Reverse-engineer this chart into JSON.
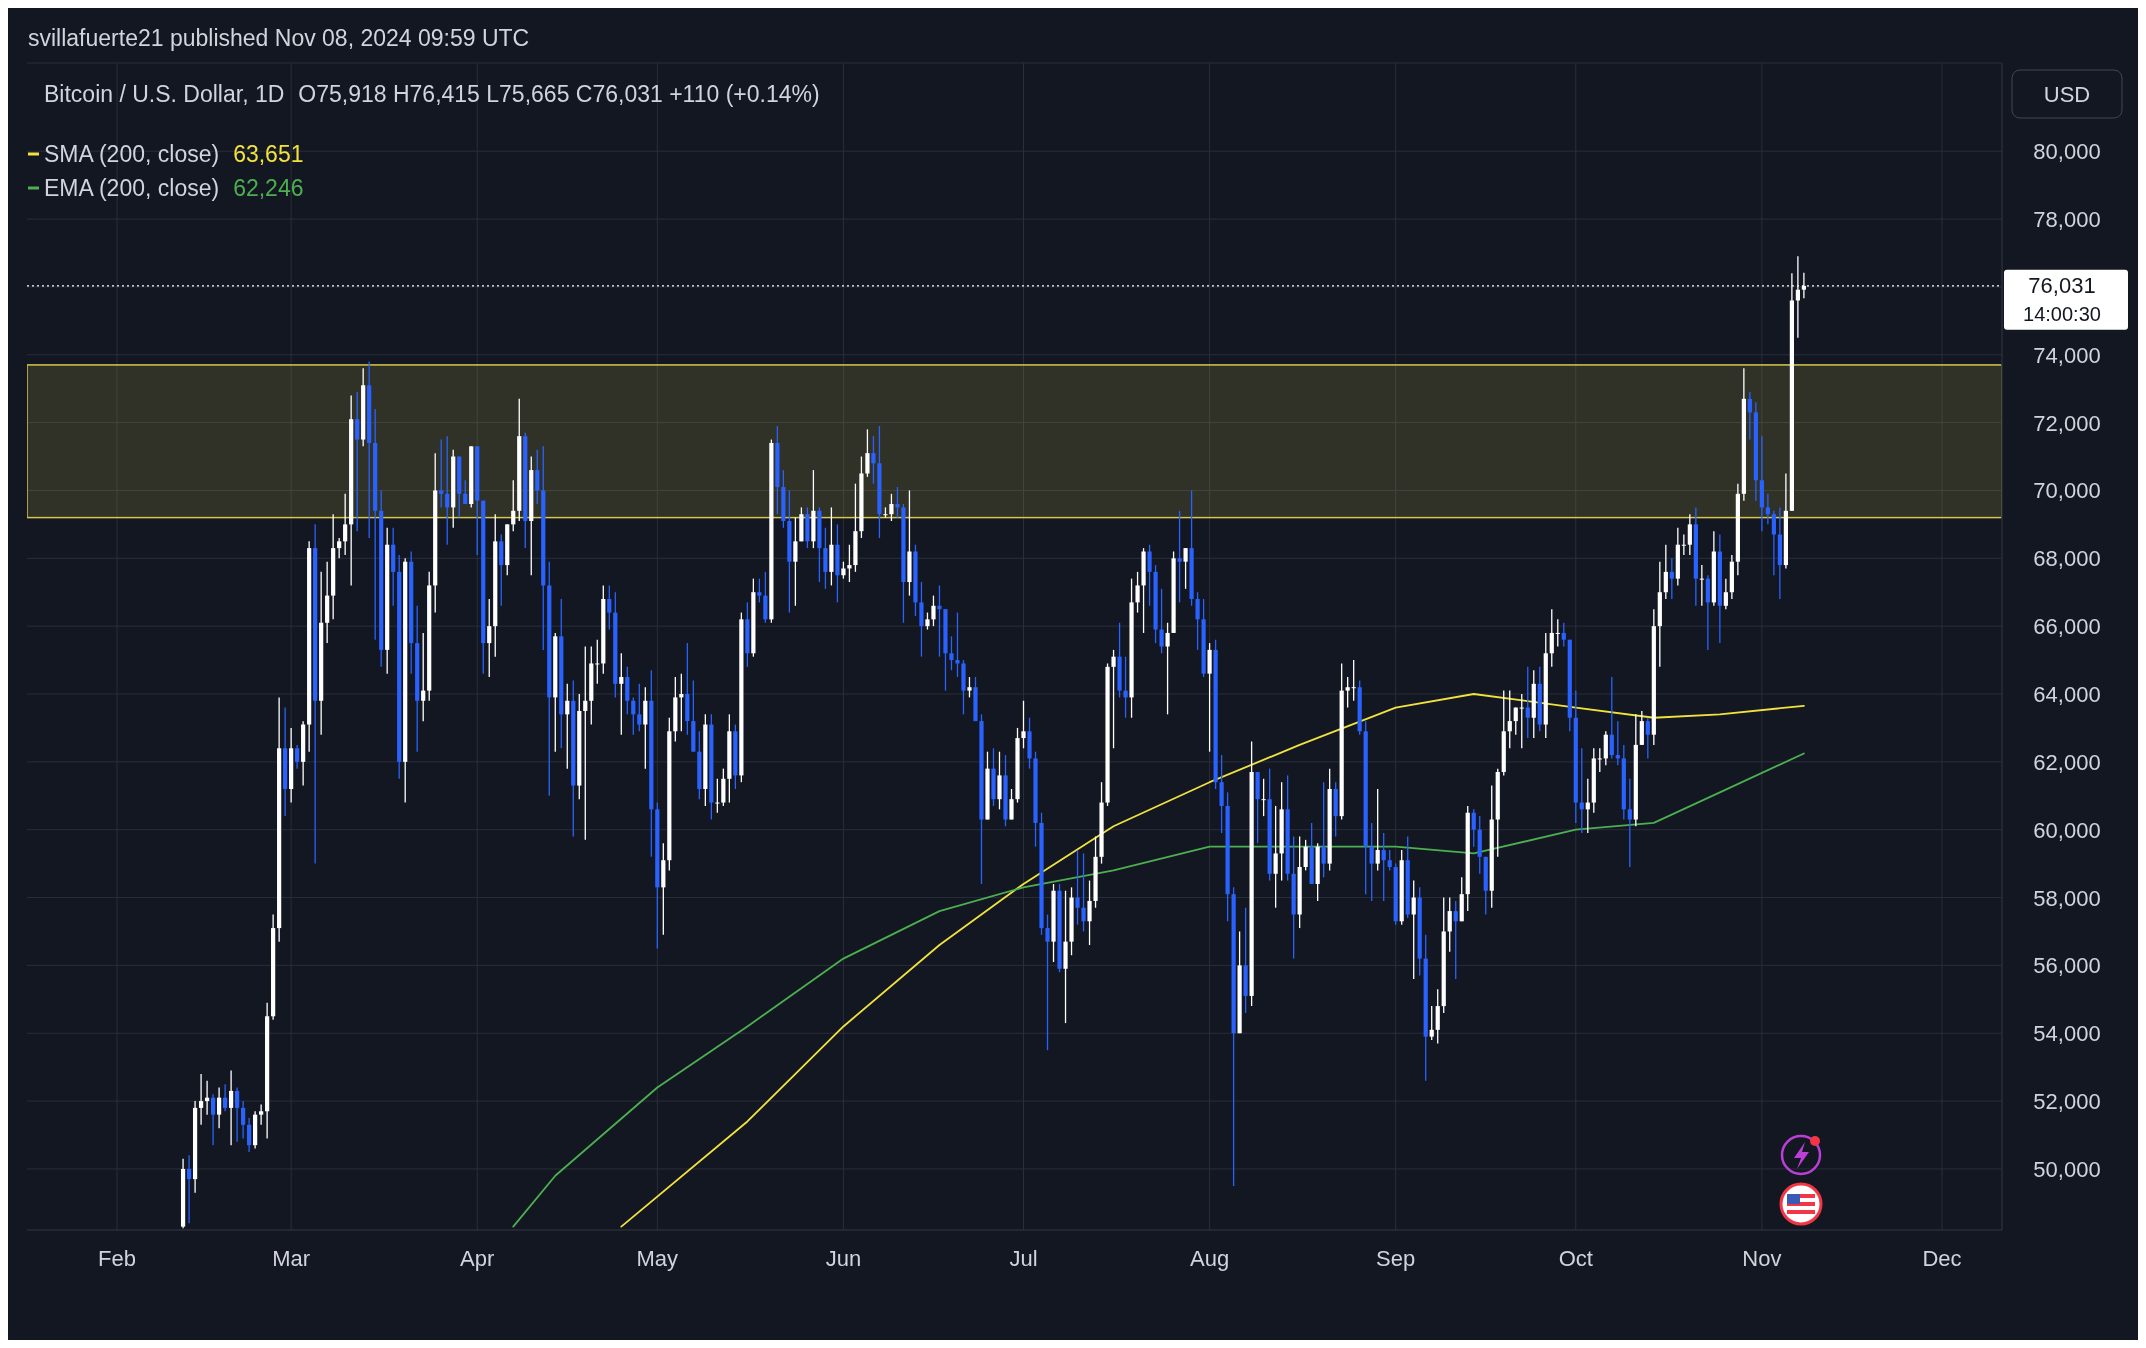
{
  "chart_data": {
    "type": "candlestick",
    "title": "Bitcoin / U.S. Dollar, 1D",
    "subtitle": "O75,918 H76,415 L75,665 C76,031 +110 (+0.14%)",
    "ylabel": "USD",
    "annotations": [
      "svillafuerte21 published Nov 08, 2024 09:59 UTC",
      "63,651",
      "62,246",
      "14:00:30"
    ],
    "xlim": [
      "2024-01-17",
      "2024-12-11"
    ],
    "xticks": [
      {
        "value": "2024-02-01",
        "label": "Feb"
      },
      {
        "value": "2024-03-01",
        "label": "Mar"
      },
      {
        "value": "2024-04-01",
        "label": "Apr"
      },
      {
        "value": "2024-05-01",
        "label": "May"
      },
      {
        "value": "2024-06-01",
        "label": "Jun"
      },
      {
        "value": "2024-07-01",
        "label": "Jul"
      },
      {
        "value": "2024-08-01",
        "label": "Aug"
      },
      {
        "value": "2024-09-01",
        "label": "Sep"
      },
      {
        "value": "2024-10-01",
        "label": "Oct"
      },
      {
        "value": "2024-11-01",
        "label": "Nov"
      },
      {
        "value": "2024-12-01",
        "label": "Dec"
      }
    ],
    "ylim": [
      48200,
      82600
    ],
    "yticks": [
      {
        "value": 50000,
        "label": "50,000"
      },
      {
        "value": 52000,
        "label": "52,000"
      },
      {
        "value": 54000,
        "label": "54,000"
      },
      {
        "value": 56000,
        "label": "56,000"
      },
      {
        "value": 58000,
        "label": "58,000"
      },
      {
        "value": 60000,
        "label": "60,000"
      },
      {
        "value": 62000,
        "label": "62,000"
      },
      {
        "value": 64000,
        "label": "64,000"
      },
      {
        "value": 66000,
        "label": "66,000"
      },
      {
        "value": 68000,
        "label": "68,000"
      },
      {
        "value": 70000,
        "label": "70,000"
      },
      {
        "value": 72000,
        "label": "72,000"
      },
      {
        "value": 74000,
        "label": "74,000"
      },
      {
        "value": 76000,
        "label": null
      },
      {
        "value": 78000,
        "label": "78,000"
      },
      {
        "value": 80000,
        "label": "80,000"
      }
    ],
    "grid": true,
    "legend": "top left",
    "bands": [
      {
        "axis": "y",
        "from": 69200,
        "to": 73700,
        "color": "#d8c84a"
      }
    ],
    "ref_lines": [
      {
        "axis": "y",
        "value": 76031,
        "label": "76,031",
        "color": "#ffffff",
        "line_style": "dotted"
      }
    ],
    "series": [
      {
        "name": "SMA (200, close)",
        "type": "line",
        "color": "#f2e33c",
        "x": [
          "2024-04-25",
          "2024-05-16",
          "2024-06-01",
          "2024-06-17",
          "2024-07-01",
          "2024-07-16",
          "2024-08-01",
          "2024-08-16",
          "2024-09-01",
          "2024-09-14",
          "2024-10-01",
          "2024-10-14",
          "2024-10-25",
          "2024-11-08"
        ],
        "values": [
          48300,
          51400,
          54200,
          56600,
          58400,
          60100,
          61400,
          62500,
          63600,
          64000,
          63600,
          63300,
          63400,
          63651
        ]
      },
      {
        "name": "EMA (200, close)",
        "type": "line",
        "color": "#4caf50",
        "x": [
          "2024-04-07",
          "2024-04-14",
          "2024-05-01",
          "2024-05-16",
          "2024-06-01",
          "2024-06-17",
          "2024-07-01",
          "2024-07-16",
          "2024-08-01",
          "2024-08-16",
          "2024-09-01",
          "2024-09-14",
          "2024-10-01",
          "2024-10-14",
          "2024-10-25",
          "2024-11-08"
        ],
        "values": [
          48300,
          49800,
          52400,
          54200,
          56200,
          57600,
          58300,
          58800,
          59500,
          59500,
          59500,
          59300,
          60000,
          60200,
          61100,
          62246
        ]
      }
    ],
    "x": [
      "2024-02-12",
      "2024-02-13",
      "2024-02-14",
      "2024-02-15",
      "2024-02-16",
      "2024-02-17",
      "2024-02-18",
      "2024-02-19",
      "2024-02-20",
      "2024-02-21",
      "2024-02-22",
      "2024-02-23",
      "2024-02-24",
      "2024-02-25",
      "2024-02-26",
      "2024-02-27",
      "2024-02-28",
      "2024-02-29",
      "2024-03-01",
      "2024-03-02",
      "2024-03-03",
      "2024-03-04",
      "2024-03-05",
      "2024-03-06",
      "2024-03-07",
      "2024-03-08",
      "2024-03-09",
      "2024-03-10",
      "2024-03-11",
      "2024-03-12",
      "2024-03-13",
      "2024-03-14",
      "2024-03-15",
      "2024-03-16",
      "2024-03-17",
      "2024-03-18",
      "2024-03-19",
      "2024-03-20",
      "2024-03-21",
      "2024-03-22",
      "2024-03-23",
      "2024-03-24",
      "2024-03-25",
      "2024-03-26",
      "2024-03-27",
      "2024-03-28",
      "2024-03-29",
      "2024-03-30",
      "2024-03-31",
      "2024-04-01",
      "2024-04-02",
      "2024-04-03",
      "2024-04-04",
      "2024-04-05",
      "2024-04-06",
      "2024-04-07",
      "2024-04-08",
      "2024-04-09",
      "2024-04-10",
      "2024-04-11",
      "2024-04-12",
      "2024-04-13",
      "2024-04-14",
      "2024-04-15",
      "2024-04-16",
      "2024-04-17",
      "2024-04-18",
      "2024-04-19",
      "2024-04-20",
      "2024-04-21",
      "2024-04-22",
      "2024-04-23",
      "2024-04-24",
      "2024-04-25",
      "2024-04-26",
      "2024-04-27",
      "2024-04-28",
      "2024-04-29",
      "2024-04-30",
      "2024-05-01",
      "2024-05-02",
      "2024-05-03",
      "2024-05-04",
      "2024-05-05",
      "2024-05-06",
      "2024-05-07",
      "2024-05-08",
      "2024-05-09",
      "2024-05-10",
      "2024-05-11",
      "2024-05-12",
      "2024-05-13",
      "2024-05-14",
      "2024-05-15",
      "2024-05-16",
      "2024-05-17",
      "2024-05-18",
      "2024-05-19",
      "2024-05-20",
      "2024-05-21",
      "2024-05-22",
      "2024-05-23",
      "2024-05-24",
      "2024-05-25",
      "2024-05-26",
      "2024-05-27",
      "2024-05-28",
      "2024-05-29",
      "2024-05-30",
      "2024-05-31",
      "2024-06-01",
      "2024-06-02",
      "2024-06-03",
      "2024-06-04",
      "2024-06-05",
      "2024-06-06",
      "2024-06-07",
      "2024-06-08",
      "2024-06-09",
      "2024-06-10",
      "2024-06-11",
      "2024-06-12",
      "2024-06-13",
      "2024-06-14",
      "2024-06-15",
      "2024-06-16",
      "2024-06-17",
      "2024-06-18",
      "2024-06-19",
      "2024-06-20",
      "2024-06-21",
      "2024-06-22",
      "2024-06-23",
      "2024-06-24",
      "2024-06-25",
      "2024-06-26",
      "2024-06-27",
      "2024-06-28",
      "2024-06-29",
      "2024-06-30",
      "2024-07-01",
      "2024-07-02",
      "2024-07-03",
      "2024-07-04",
      "2024-07-05",
      "2024-07-06",
      "2024-07-07",
      "2024-07-08",
      "2024-07-09",
      "2024-07-10",
      "2024-07-11",
      "2024-07-12",
      "2024-07-13",
      "2024-07-14",
      "2024-07-15",
      "2024-07-16",
      "2024-07-17",
      "2024-07-18",
      "2024-07-19",
      "2024-07-20",
      "2024-07-21",
      "2024-07-22",
      "2024-07-23",
      "2024-07-24",
      "2024-07-25",
      "2024-07-26",
      "2024-07-27",
      "2024-07-28",
      "2024-07-29",
      "2024-07-30",
      "2024-07-31",
      "2024-08-01",
      "2024-08-02",
      "2024-08-03",
      "2024-08-04",
      "2024-08-05",
      "2024-08-06",
      "2024-08-07",
      "2024-08-08",
      "2024-08-09",
      "2024-08-10",
      "2024-08-11",
      "2024-08-12",
      "2024-08-13",
      "2024-08-14",
      "2024-08-15",
      "2024-08-16",
      "2024-08-17",
      "2024-08-18",
      "2024-08-19",
      "2024-08-20",
      "2024-08-21",
      "2024-08-22",
      "2024-08-23",
      "2024-08-24",
      "2024-08-25",
      "2024-08-26",
      "2024-08-27",
      "2024-08-28",
      "2024-08-29",
      "2024-08-30",
      "2024-08-31",
      "2024-09-01",
      "2024-09-02",
      "2024-09-03",
      "2024-09-04",
      "2024-09-05",
      "2024-09-06",
      "2024-09-07",
      "2024-09-08",
      "2024-09-09",
      "2024-09-10",
      "2024-09-11",
      "2024-09-12",
      "2024-09-13",
      "2024-09-14",
      "2024-09-15",
      "2024-09-16",
      "2024-09-17",
      "2024-09-18",
      "2024-09-19",
      "2024-09-20",
      "2024-09-21",
      "2024-09-22",
      "2024-09-23",
      "2024-09-24",
      "2024-09-25",
      "2024-09-26",
      "2024-09-27",
      "2024-09-28",
      "2024-09-29",
      "2024-09-30",
      "2024-10-01",
      "2024-10-02",
      "2024-10-03",
      "2024-10-04",
      "2024-10-05",
      "2024-10-06",
      "2024-10-07",
      "2024-10-08",
      "2024-10-09",
      "2024-10-10",
      "2024-10-11",
      "2024-10-12",
      "2024-10-13",
      "2024-10-14",
      "2024-10-15",
      "2024-10-16",
      "2024-10-17",
      "2024-10-18",
      "2024-10-19",
      "2024-10-20",
      "2024-10-21",
      "2024-10-22",
      "2024-10-23",
      "2024-10-24",
      "2024-10-25",
      "2024-10-26",
      "2024-10-27",
      "2024-10-28",
      "2024-10-29",
      "2024-10-30",
      "2024-10-31",
      "2024-11-01",
      "2024-11-02",
      "2024-11-03",
      "2024-11-04",
      "2024-11-05",
      "2024-11-06",
      "2024-11-07",
      "2024-11-08"
    ],
    "ohlc": [
      [
        48300,
        50300,
        48250,
        50000
      ],
      [
        50000,
        50400,
        48400,
        49700
      ],
      [
        49700,
        52000,
        49300,
        51800
      ],
      [
        51800,
        52800,
        51300,
        52000
      ],
      [
        52000,
        52600,
        51600,
        52100
      ],
      [
        52100,
        52200,
        50700,
        51600
      ],
      [
        51600,
        52400,
        51200,
        52100
      ],
      [
        52100,
        52500,
        51700,
        51800
      ],
      [
        51800,
        52900,
        50700,
        52300
      ],
      [
        52300,
        52400,
        50800,
        51800
      ],
      [
        51800,
        52000,
        50900,
        51300
      ],
      [
        51300,
        51500,
        50500,
        50700
      ],
      [
        50700,
        51700,
        50600,
        51600
      ],
      [
        51600,
        51900,
        51300,
        51700
      ],
      [
        51700,
        54900,
        50900,
        54500
      ],
      [
        54500,
        57500,
        54400,
        57100
      ],
      [
        57100,
        63900,
        56700,
        62400
      ],
      [
        62400,
        63600,
        60400,
        61200
      ],
      [
        61200,
        63000,
        60800,
        62400
      ],
      [
        62400,
        62500,
        61800,
        62000
      ],
      [
        62000,
        63200,
        61300,
        63100
      ],
      [
        63100,
        68500,
        62300,
        68300
      ],
      [
        68300,
        69000,
        59000,
        63800
      ],
      [
        63800,
        67600,
        62800,
        66100
      ],
      [
        66100,
        67900,
        65500,
        66900
      ],
      [
        66900,
        69300,
        66200,
        68300
      ],
      [
        68300,
        68600,
        68000,
        68500
      ],
      [
        68500,
        69900,
        68100,
        69000
      ],
      [
        69000,
        72800,
        67200,
        72100
      ],
      [
        72100,
        72900,
        68800,
        71500
      ],
      [
        71500,
        73600,
        71300,
        73100
      ],
      [
        73100,
        73800,
        68600,
        71400
      ],
      [
        71400,
        72400,
        65600,
        69400
      ],
      [
        69400,
        70000,
        64800,
        65300
      ],
      [
        65300,
        68900,
        64600,
        68400
      ],
      [
        68400,
        68900,
        66600,
        67600
      ],
      [
        67600,
        68100,
        61500,
        62000
      ],
      [
        62000,
        68000,
        60800,
        67900
      ],
      [
        67900,
        68200,
        64600,
        65500
      ],
      [
        65500,
        66600,
        62300,
        63800
      ],
      [
        63800,
        65800,
        63200,
        64100
      ],
      [
        64100,
        67600,
        63800,
        67200
      ],
      [
        67200,
        71100,
        66400,
        70000
      ],
      [
        70000,
        71500,
        69500,
        69900
      ],
      [
        69900,
        71600,
        68400,
        69500
      ],
      [
        69500,
        71200,
        68900,
        71000
      ],
      [
        71000,
        71000,
        69200,
        69900
      ],
      [
        69900,
        70300,
        69600,
        69600
      ],
      [
        69600,
        71300,
        69500,
        71300
      ],
      [
        71300,
        71300,
        68100,
        69700
      ],
      [
        69700,
        69700,
        64600,
        65500
      ],
      [
        65500,
        66800,
        64500,
        66000
      ],
      [
        66000,
        69300,
        65100,
        68500
      ],
      [
        68500,
        68700,
        66600,
        67800
      ],
      [
        67800,
        69000,
        67500,
        69000
      ],
      [
        69000,
        70300,
        68800,
        69400
      ],
      [
        69400,
        72700,
        69100,
        71600
      ],
      [
        71600,
        71700,
        68300,
        69100
      ],
      [
        69100,
        71000,
        67500,
        70600
      ],
      [
        70600,
        71200,
        69600,
        70000
      ],
      [
        70000,
        71300,
        65300,
        67200
      ],
      [
        67200,
        67900,
        61000,
        63900
      ],
      [
        63900,
        65800,
        62300,
        65700
      ],
      [
        65700,
        66800,
        62400,
        63400
      ],
      [
        63400,
        64300,
        61800,
        63800
      ],
      [
        63800,
        64400,
        59800,
        61300
      ],
      [
        61300,
        64000,
        60900,
        63500
      ],
      [
        63500,
        65400,
        59700,
        63800
      ],
      [
        63800,
        65400,
        63100,
        64900
      ],
      [
        64900,
        65600,
        64300,
        64900
      ],
      [
        64900,
        67200,
        64600,
        66800
      ],
      [
        66800,
        67200,
        65900,
        66400
      ],
      [
        66400,
        67000,
        63900,
        64300
      ],
      [
        64300,
        65200,
        62800,
        64500
      ],
      [
        64500,
        64800,
        63400,
        63800
      ],
      [
        63800,
        63900,
        62800,
        63400
      ],
      [
        63400,
        64300,
        62900,
        63100
      ],
      [
        63100,
        64200,
        61800,
        63800
      ],
      [
        63800,
        64700,
        59200,
        60600
      ],
      [
        60600,
        60800,
        56500,
        58300
      ],
      [
        58300,
        59600,
        56900,
        59100
      ],
      [
        59100,
        63300,
        58800,
        62900
      ],
      [
        62900,
        64500,
        62600,
        63900
      ],
      [
        63900,
        64600,
        62900,
        64000
      ],
      [
        64000,
        65500,
        62800,
        63200
      ],
      [
        63200,
        64400,
        62300,
        62300
      ],
      [
        62300,
        62900,
        60900,
        61200
      ],
      [
        61200,
        63400,
        60700,
        63100
      ],
      [
        63100,
        63400,
        60300,
        60800
      ],
      [
        60800,
        61500,
        60500,
        60800
      ],
      [
        60800,
        61800,
        60700,
        61500
      ],
      [
        61500,
        63400,
        60800,
        62900
      ],
      [
        62900,
        63100,
        61200,
        61600
      ],
      [
        61600,
        66400,
        61400,
        66200
      ],
      [
        66200,
        66700,
        64800,
        65200
      ],
      [
        65200,
        67400,
        65100,
        67000
      ],
      [
        67000,
        67400,
        66700,
        66900
      ],
      [
        66900,
        67600,
        66100,
        66200
      ],
      [
        66200,
        71500,
        66100,
        71400
      ],
      [
        71400,
        71900,
        69300,
        70100
      ],
      [
        70100,
        70600,
        68900,
        69100
      ],
      [
        69100,
        70000,
        66400,
        67900
      ],
      [
        67900,
        69200,
        66600,
        68500
      ],
      [
        68500,
        69500,
        68500,
        69300
      ],
      [
        69300,
        69500,
        68300,
        68500
      ],
      [
        68500,
        70600,
        68300,
        69400
      ],
      [
        69400,
        69500,
        67300,
        68300
      ],
      [
        68300,
        68900,
        67100,
        67600
      ],
      [
        67600,
        69500,
        67200,
        68400
      ],
      [
        68400,
        69000,
        66700,
        67500
      ],
      [
        67500,
        67900,
        67400,
        67700
      ],
      [
        67700,
        68400,
        67300,
        67800
      ],
      [
        67800,
        70200,
        67600,
        68800
      ],
      [
        68800,
        71000,
        68600,
        70500
      ],
      [
        70500,
        71800,
        70400,
        71100
      ],
      [
        71100,
        71600,
        70200,
        70800
      ],
      [
        70800,
        71900,
        68600,
        69300
      ],
      [
        69300,
        69500,
        69200,
        69300
      ],
      [
        69300,
        69900,
        69100,
        69600
      ],
      [
        69600,
        70100,
        69200,
        69500
      ],
      [
        69500,
        69600,
        66100,
        67300
      ],
      [
        67300,
        70000,
        66900,
        68200
      ],
      [
        68200,
        68400,
        66300,
        66700
      ],
      [
        66700,
        67300,
        65100,
        66000
      ],
      [
        66000,
        66400,
        65900,
        66200
      ],
      [
        66200,
        66900,
        66000,
        66600
      ],
      [
        66600,
        67200,
        65100,
        66500
      ],
      [
        66500,
        66500,
        64100,
        65200
      ],
      [
        65200,
        65700,
        64700,
        65000
      ],
      [
        65000,
        66400,
        64500,
        64900
      ],
      [
        64900,
        65000,
        63400,
        64100
      ],
      [
        64100,
        64500,
        63900,
        64200
      ],
      [
        64200,
        64500,
        63200,
        63200
      ],
      [
        63200,
        63400,
        58400,
        60300
      ],
      [
        60300,
        62300,
        60300,
        61800
      ],
      [
        61800,
        62400,
        60700,
        60900
      ],
      [
        60900,
        62300,
        60600,
        61600
      ],
      [
        61600,
        62200,
        60100,
        60300
      ],
      [
        60300,
        61200,
        60300,
        60900
      ],
      [
        60900,
        63000,
        60800,
        62700
      ],
      [
        62700,
        63800,
        62400,
        62900
      ],
      [
        62900,
        63300,
        61800,
        62100
      ],
      [
        62100,
        62300,
        59500,
        60200
      ],
      [
        60200,
        60500,
        56900,
        57100
      ],
      [
        57100,
        57500,
        53500,
        56700
      ],
      [
        56700,
        58400,
        56100,
        58200
      ],
      [
        58200,
        58400,
        55800,
        55900
      ],
      [
        55900,
        58200,
        54300,
        56700
      ],
      [
        56700,
        58300,
        56300,
        58000
      ],
      [
        58000,
        59400,
        57200,
        57700
      ],
      [
        57700,
        59300,
        57000,
        57300
      ],
      [
        57300,
        58500,
        56600,
        57900
      ],
      [
        57900,
        59800,
        57700,
        59200
      ],
      [
        59200,
        61400,
        59000,
        60800
      ],
      [
        60800,
        64900,
        60700,
        64800
      ],
      [
        64800,
        65300,
        62400,
        65100
      ],
      [
        65100,
        66100,
        63900,
        64100
      ],
      [
        64100,
        65100,
        63300,
        63900
      ],
      [
        63900,
        67400,
        63300,
        66700
      ],
      [
        66700,
        67600,
        66400,
        67200
      ],
      [
        67200,
        68300,
        65800,
        68200
      ],
      [
        68200,
        68400,
        66600,
        67600
      ],
      [
        67600,
        67800,
        65500,
        65900
      ],
      [
        65900,
        67100,
        65200,
        65400
      ],
      [
        65400,
        66100,
        63400,
        65800
      ],
      [
        65800,
        68200,
        65800,
        68000
      ],
      [
        68000,
        69400,
        66700,
        67900
      ],
      [
        67900,
        68300,
        67100,
        68300
      ],
      [
        68300,
        70000,
        66600,
        66800
      ],
      [
        66800,
        67000,
        65300,
        66200
      ],
      [
        66200,
        66800,
        64500,
        64600
      ],
      [
        64600,
        65500,
        62300,
        65300
      ],
      [
        65300,
        65600,
        61200,
        61400
      ],
      [
        61400,
        62200,
        59900,
        60700
      ],
      [
        60700,
        61100,
        57300,
        58100
      ],
      [
        58100,
        58300,
        49500,
        54000
      ],
      [
        54000,
        57000,
        54000,
        56000
      ],
      [
        56000,
        57700,
        54600,
        55100
      ],
      [
        55100,
        62600,
        54800,
        61700
      ],
      [
        61700,
        61700,
        59600,
        60900
      ],
      [
        60900,
        61500,
        60400,
        60900
      ],
      [
        60900,
        61800,
        58500,
        58700
      ],
      [
        58700,
        60700,
        57700,
        59300
      ],
      [
        59300,
        61400,
        58500,
        60600
      ],
      [
        60600,
        61600,
        58500,
        58700
      ],
      [
        58700,
        59800,
        56200,
        57500
      ],
      [
        57500,
        59800,
        57100,
        58900
      ],
      [
        58900,
        59700,
        58800,
        59500
      ],
      [
        59500,
        60200,
        58400,
        58400
      ],
      [
        58400,
        59600,
        57900,
        59500
      ],
      [
        59500,
        61400,
        58600,
        59000
      ],
      [
        59000,
        61800,
        58800,
        61200
      ],
      [
        61200,
        61400,
        59800,
        60400
      ],
      [
        60400,
        64900,
        60300,
        64100
      ],
      [
        64100,
        64500,
        63600,
        64200
      ],
      [
        64200,
        65000,
        63800,
        64200
      ],
      [
        64200,
        64400,
        62800,
        62900
      ],
      [
        62900,
        63200,
        58100,
        59500
      ],
      [
        59500,
        60200,
        57900,
        59000
      ],
      [
        59000,
        61200,
        58800,
        59400
      ],
      [
        59400,
        59900,
        57900,
        59100
      ],
      [
        59100,
        59400,
        58800,
        58900
      ],
      [
        58900,
        59000,
        57200,
        57300
      ],
      [
        57300,
        59400,
        57200,
        59100
      ],
      [
        59100,
        59800,
        57400,
        57500
      ],
      [
        57500,
        58500,
        55600,
        58000
      ],
      [
        58000,
        58300,
        55700,
        56200
      ],
      [
        56200,
        56900,
        52600,
        53900
      ],
      [
        53900,
        54800,
        53800,
        54100
      ],
      [
        54100,
        55300,
        53700,
        54800
      ],
      [
        54800,
        58000,
        54600,
        57000
      ],
      [
        57000,
        58000,
        56400,
        57600
      ],
      [
        57600,
        57900,
        55600,
        57300
      ],
      [
        57300,
        58600,
        57300,
        58100
      ],
      [
        58100,
        60700,
        57600,
        60500
      ],
      [
        60500,
        60600,
        59500,
        60000
      ],
      [
        60000,
        60400,
        58700,
        59200
      ],
      [
        59200,
        59200,
        57500,
        58200
      ],
      [
        58200,
        61300,
        57700,
        60300
      ],
      [
        60300,
        61800,
        59200,
        61700
      ],
      [
        61700,
        64100,
        61600,
        62900
      ],
      [
        62900,
        64100,
        62400,
        63200
      ],
      [
        63200,
        63600,
        62800,
        63600
      ],
      [
        63600,
        64000,
        62400,
        63600
      ],
      [
        63600,
        64800,
        62700,
        63300
      ],
      [
        63300,
        64700,
        62700,
        64300
      ],
      [
        64300,
        64800,
        62900,
        63100
      ],
      [
        63100,
        65800,
        62700,
        65200
      ],
      [
        65200,
        66500,
        64800,
        65800
      ],
      [
        65800,
        66200,
        65400,
        65800
      ],
      [
        65800,
        66100,
        65400,
        65600
      ],
      [
        65600,
        65600,
        62900,
        63300
      ],
      [
        63300,
        64100,
        60200,
        60800
      ],
      [
        60800,
        62400,
        59900,
        60600
      ],
      [
        60600,
        61500,
        59900,
        60800
      ],
      [
        60800,
        62400,
        60500,
        62100
      ],
      [
        62100,
        62400,
        61700,
        62100
      ],
      [
        62100,
        62900,
        61900,
        62800
      ],
      [
        62800,
        64500,
        62100,
        62200
      ],
      [
        62200,
        63200,
        61900,
        62100
      ],
      [
        62100,
        62500,
        60300,
        60600
      ],
      [
        60600,
        61500,
        58900,
        60300
      ],
      [
        60300,
        63400,
        60100,
        62500
      ],
      [
        62500,
        63500,
        62500,
        63200
      ],
      [
        63200,
        63300,
        62100,
        62800
      ],
      [
        62800,
        66500,
        62500,
        66000
      ],
      [
        66000,
        67900,
        64800,
        67000
      ],
      [
        67000,
        68400,
        66800,
        67600
      ],
      [
        67600,
        68000,
        66800,
        67400
      ],
      [
        67400,
        68900,
        67200,
        68400
      ],
      [
        68400,
        68700,
        68100,
        68400
      ],
      [
        68400,
        69300,
        68100,
        69000
      ],
      [
        69000,
        69500,
        66600,
        67400
      ],
      [
        67400,
        67800,
        66600,
        67400
      ],
      [
        67400,
        67500,
        65300,
        66700
      ],
      [
        66700,
        68800,
        66600,
        68200
      ],
      [
        68200,
        68700,
        65500,
        66600
      ],
      [
        66600,
        67400,
        66500,
        67000
      ],
      [
        67000,
        68100,
        66800,
        67900
      ],
      [
        67900,
        70200,
        67500,
        69900
      ],
      [
        69900,
        73600,
        69700,
        72700
      ],
      [
        72700,
        72900,
        71500,
        72300
      ],
      [
        72300,
        72600,
        69700,
        70300
      ],
      [
        70300,
        71600,
        68800,
        69500
      ],
      [
        69500,
        69900,
        69000,
        69300
      ],
      [
        69300,
        69400,
        67500,
        68700
      ],
      [
        68700,
        69500,
        66800,
        67800
      ],
      [
        67800,
        70500,
        67700,
        69400
      ],
      [
        69400,
        76400,
        69400,
        75600
      ],
      [
        75600,
        76900,
        74500,
        75918
      ],
      [
        75918,
        76415,
        75665,
        76031
      ]
    ]
  }
}
